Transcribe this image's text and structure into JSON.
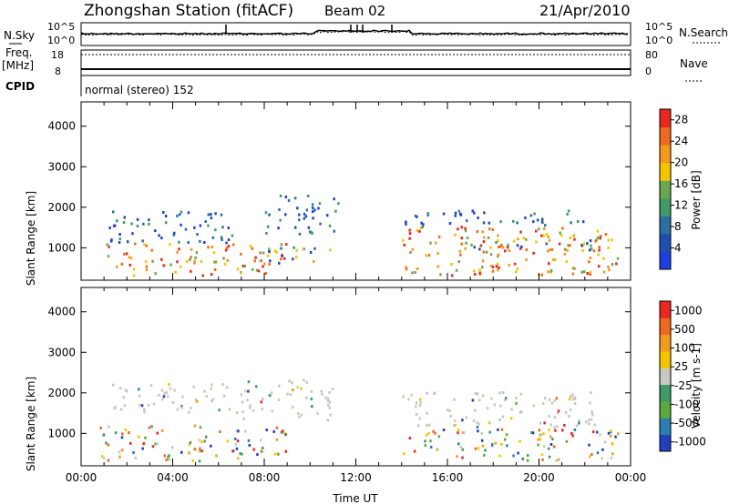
{
  "header": {
    "station": "Zhongshan Station (fitACF)",
    "beam": "Beam 02",
    "date": "21/Apr/2010"
  },
  "summary_panel": {
    "nsky_label": "N.Sky",
    "nsky_ticks": [
      "10^5",
      "10^0"
    ],
    "nsearch_label": "N.Search",
    "nsearch_ticks": [
      "10^5",
      "10^0"
    ],
    "freq_label_top": "Freq.",
    "freq_label_bottom": "[MHz]",
    "freq_ticks": [
      "18",
      "8"
    ],
    "nave_label": "Nave",
    "nave_ticks": [
      "80",
      "0"
    ],
    "cpid_label": "CPID",
    "mode_text": "normal (stereo) 152"
  },
  "colors": {
    "power_scale": [
      "#1e3fe0",
      "#1f4fae",
      "#2b6fa0",
      "#3f9a6a",
      "#6aa84f",
      "#f5c400",
      "#f39a1e",
      "#ef6a1f",
      "#e8281f"
    ],
    "velocity_scale": [
      "#2040c0",
      "#2a7fb0",
      "#5aaa40",
      "#3f9a6a",
      "#c8c8c0",
      "#f5c400",
      "#f39a1e",
      "#ef6a1f",
      "#e8281f"
    ]
  },
  "chart_data": [
    {
      "type": "heatmap",
      "ylabel": "Slant Range [km]",
      "yticks": [
        "1000",
        "2000",
        "3000",
        "4000"
      ],
      "ylim": [
        200,
        4600
      ],
      "xlim_hours": [
        0,
        24
      ],
      "colorbar_label": "Power [dB]",
      "colorbar_ticks": [
        "4",
        "8",
        "12",
        "16",
        "20",
        "24",
        "28"
      ],
      "colorbar_range": [
        0,
        30
      ],
      "echo_regions": [
        {
          "t0": 1.0,
          "t1": 9.0,
          "r0": 300,
          "r1": 1100,
          "level": "strong"
        },
        {
          "t0": 1.2,
          "t1": 7.0,
          "r0": 1100,
          "r1": 1900,
          "level": "weak"
        },
        {
          "t0": 7.0,
          "t1": 11.0,
          "r0": 600,
          "r1": 1000,
          "level": "mixed"
        },
        {
          "t0": 8.0,
          "t1": 11.2,
          "r0": 1300,
          "r1": 2300,
          "level": "weak"
        },
        {
          "t0": 14.0,
          "t1": 23.5,
          "r0": 300,
          "r1": 1500,
          "level": "strong"
        },
        {
          "t0": 14.0,
          "t1": 22.0,
          "r0": 1500,
          "r1": 1900,
          "level": "weak"
        },
        {
          "t0": 16.5,
          "t1": 22.5,
          "r0": 900,
          "r1": 1300,
          "level": "mixed"
        }
      ]
    },
    {
      "type": "heatmap",
      "ylabel": "Slant Range [km]",
      "yticks": [
        "1000",
        "2000",
        "3000",
        "4000"
      ],
      "ylim": [
        200,
        4600
      ],
      "xlim_hours": [
        0,
        24
      ],
      "xticks": [
        "00:00",
        "04:00",
        "08:00",
        "12:00",
        "16:00",
        "20:00",
        "00:00"
      ],
      "xlabel": "Time UT",
      "colorbar_label": "Velocity [m s-1]",
      "colorbar_ticks": [
        "1000",
        "500",
        "100",
        "25",
        "-25",
        "-100",
        "-500",
        "-1000"
      ],
      "echo_regions": [
        {
          "t0": 0.8,
          "t1": 9.0,
          "r0": 300,
          "r1": 1200,
          "level": "mixed"
        },
        {
          "t0": 1.2,
          "t1": 7.0,
          "r0": 1500,
          "r1": 2200,
          "level": "ground"
        },
        {
          "t0": 7.0,
          "t1": 11.0,
          "r0": 1300,
          "r1": 2300,
          "level": "ground"
        },
        {
          "t0": 14.0,
          "t1": 22.5,
          "r0": 1100,
          "r1": 2000,
          "level": "ground"
        },
        {
          "t0": 14.0,
          "t1": 23.5,
          "r0": 300,
          "r1": 1100,
          "level": "mixed"
        }
      ]
    }
  ]
}
